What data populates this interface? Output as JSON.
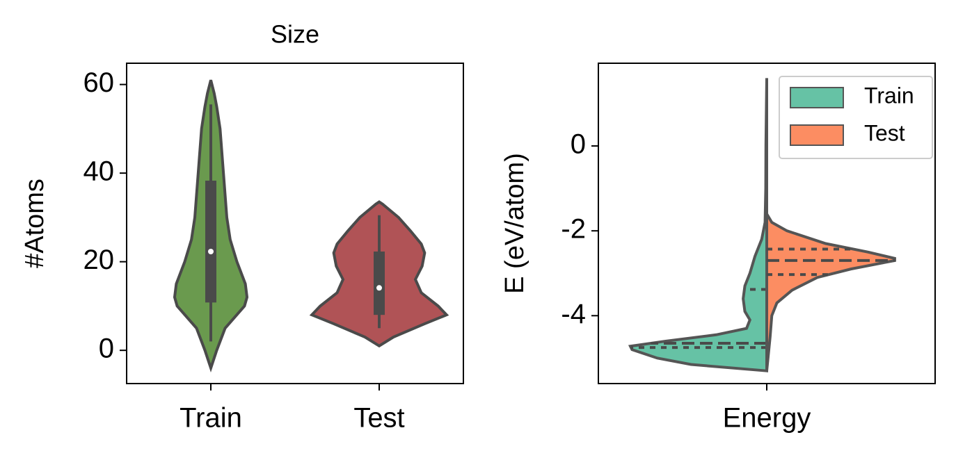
{
  "chart_data": [
    {
      "type": "violin",
      "title": "Size",
      "ylabel": "#Atoms",
      "categories": [
        "Train",
        "Test"
      ],
      "ylim": [
        -7.5,
        64.8
      ],
      "yticks": [
        0,
        20,
        40,
        60
      ],
      "violins": [
        {
          "color": "#6a9a4e",
          "kde": {
            "y": [
              -4,
              0,
              5,
              10,
              12,
              15,
              20,
              25,
              30,
              40,
              50,
              55,
              58,
              61
            ],
            "width": [
              0,
              0.07,
              0.17,
              0.4,
              0.43,
              0.41,
              0.31,
              0.23,
              0.19,
              0.15,
              0.11,
              0.07,
              0.04,
              0
            ]
          },
          "box": {
            "whislo": 2,
            "q1": 10.8,
            "median": 22.3,
            "q3": 38.3,
            "whishi": 55.5
          }
        },
        {
          "color": "#b05356",
          "kde": {
            "y": [
              1,
              3,
              6,
              8,
              10,
              13,
              16,
              19,
              22,
              24,
              27,
              30,
              33,
              33.5
            ],
            "width": [
              0,
              0.17,
              0.54,
              0.8,
              0.7,
              0.5,
              0.43,
              0.51,
              0.54,
              0.5,
              0.37,
              0.23,
              0.04,
              0
            ]
          },
          "box": {
            "whislo": 5,
            "q1": 8,
            "median": 14.1,
            "q3": 22.3,
            "whishi": 30.5
          }
        }
      ]
    },
    {
      "type": "split-violin",
      "ylabel": "E (eV/atom)",
      "categories": [
        "Energy"
      ],
      "ylim": [
        -5.6,
        1.95
      ],
      "yticks": [
        0,
        -2,
        -4
      ],
      "legend": "upper right",
      "series": [
        {
          "name": "Train",
          "color": "#66c2a5",
          "kde": {
            "y": [
              -5.3,
              -5.15,
              -5.0,
              -4.8,
              -4.72,
              -4.6,
              -4.45,
              -4.3,
              -4.1,
              -3.9,
              -3.6,
              -3.3,
              -3.0,
              -2.6,
              -2.2,
              -1.8,
              -1.0,
              0,
              1.6
            ],
            "width": [
              0,
              0.45,
              0.65,
              0.8,
              0.81,
              0.6,
              0.3,
              0.12,
              0.1,
              0.13,
              0.14,
              0.13,
              0.1,
              0.07,
              0.03,
              0.01,
              0.006,
              0.005,
              0
            ]
          },
          "quartiles": {
            "q1": -4.75,
            "median": -4.65,
            "q3": -3.38
          }
        },
        {
          "name": "Test",
          "color": "#fc8d62",
          "kde": {
            "y": [
              -5.3,
              -4.5,
              -4.0,
              -3.7,
              -3.4,
              -3.1,
              -2.9,
              -2.7,
              -2.65,
              -2.5,
              -2.3,
              -2.0,
              -1.8,
              -1.6
            ],
            "width": [
              0,
              0.02,
              0.03,
              0.06,
              0.15,
              0.3,
              0.5,
              0.76,
              0.76,
              0.6,
              0.35,
              0.12,
              0.03,
              0
            ]
          },
          "quartiles": {
            "q1": -3.03,
            "median": -2.7,
            "q3": -2.43
          }
        }
      ]
    }
  ]
}
